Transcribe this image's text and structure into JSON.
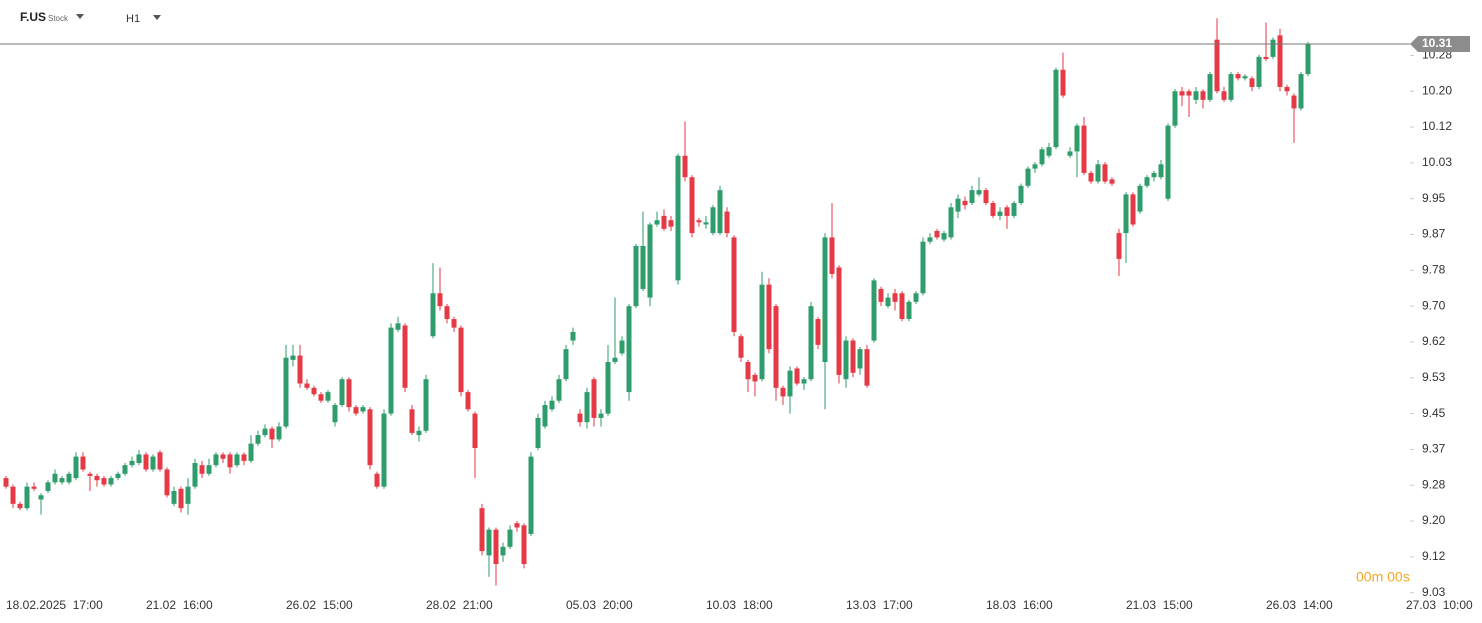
{
  "header": {
    "symbol": "F.US",
    "kind": "Stock",
    "interval": "H1"
  },
  "countdown": "00m 00s",
  "chart_data": {
    "type": "candlestick",
    "up_color": "#2e9d6b",
    "down_color": "#e63946",
    "last_price": 10.31,
    "ylim": [
      9.0,
      10.41
    ],
    "yticks": [
      {
        "value": 9.0333,
        "label": "9.03"
      },
      {
        "value": 9.1167,
        "label": "9.12"
      },
      {
        "value": 9.2,
        "label": "9.20"
      },
      {
        "value": 9.2833,
        "label": "9.28"
      },
      {
        "value": 9.3667,
        "label": "9.37"
      },
      {
        "value": 9.45,
        "label": "9.45"
      },
      {
        "value": 9.5333,
        "label": "9.53"
      },
      {
        "value": 9.6167,
        "label": "9.62"
      },
      {
        "value": 9.7,
        "label": "9.70"
      },
      {
        "value": 9.7833,
        "label": "9.78"
      },
      {
        "value": 9.8667,
        "label": "9.87"
      },
      {
        "value": 9.95,
        "label": "9.95"
      },
      {
        "value": 10.0333,
        "label": "10.03"
      },
      {
        "value": 10.1167,
        "label": "10.12"
      },
      {
        "value": 10.2,
        "label": "10.20"
      },
      {
        "value": 10.2833,
        "label": "10.28"
      }
    ],
    "categories": [
      "18.02.2025  17:00",
      null,
      null,
      null,
      null,
      null,
      null,
      null,
      null,
      null,
      null,
      null,
      null,
      null,
      null,
      null,
      null,
      null,
      null,
      null,
      "21.02  16:00",
      null,
      null,
      null,
      null,
      null,
      null,
      null,
      null,
      null,
      null,
      null,
      null,
      null,
      null,
      null,
      null,
      null,
      null,
      null,
      "26.02  15:00",
      null,
      null,
      null,
      null,
      null,
      null,
      null,
      null,
      null,
      null,
      null,
      null,
      null,
      null,
      null,
      null,
      null,
      null,
      null,
      "28.02  21:00",
      null,
      null,
      null,
      null,
      null,
      null,
      null,
      null,
      null,
      null,
      null,
      null,
      null,
      null,
      null,
      null,
      null,
      null,
      null,
      "05.03  20:00",
      null,
      null,
      null,
      null,
      null,
      null,
      null,
      null,
      null,
      null,
      null,
      null,
      null,
      null,
      null,
      null,
      null,
      null,
      null,
      "10.03  18:00",
      null,
      null,
      null,
      null,
      null,
      null,
      null,
      null,
      null,
      null,
      null,
      null,
      null,
      null,
      null,
      null,
      null,
      null,
      null,
      "13.03  17:00",
      null,
      null,
      null,
      null,
      null,
      null,
      null,
      null,
      null,
      null,
      null,
      null,
      null,
      null,
      null,
      null,
      null,
      null,
      null,
      "18.03  16:00",
      null,
      null,
      null,
      null,
      null,
      null,
      null,
      null,
      null,
      null,
      null,
      null,
      null,
      null,
      null,
      null,
      null,
      null,
      null,
      "21.03  15:00",
      null,
      null,
      null,
      null,
      null,
      null,
      null,
      null,
      null,
      null,
      null,
      null,
      null,
      null,
      null,
      null,
      null,
      null,
      null,
      "26.03  14:00",
      null,
      null,
      null,
      null,
      null,
      null,
      null,
      null,
      null,
      null,
      null,
      null,
      null,
      null,
      null,
      null,
      null,
      null,
      null,
      "27.03  10:00"
    ],
    "open": [
      9.3,
      9.28,
      9.24,
      9.23,
      9.28,
      9.25,
      9.27,
      9.29,
      9.29,
      9.29,
      9.3,
      9.35,
      9.31,
      9.305,
      9.3,
      9.285,
      9.3,
      9.31,
      9.33,
      9.335,
      9.355,
      9.32,
      9.36,
      9.32,
      9.24,
      9.275,
      9.24,
      9.28,
      9.33,
      9.31,
      9.33,
      9.355,
      9.355,
      9.33,
      9.355,
      9.34,
      9.38,
      9.4,
      9.415,
      9.39,
      9.42,
      9.575,
      9.585,
      9.52,
      9.51,
      9.495,
      9.48,
      9.43,
      9.47,
      9.53,
      9.465,
      9.455,
      9.46,
      9.31,
      9.28,
      9.45,
      9.645,
      9.655,
      9.46,
      9.4,
      9.41,
      9.63,
      9.73,
      9.7,
      9.67,
      9.65,
      9.5,
      9.45,
      9.23,
      9.12,
      9.18,
      9.12,
      9.14,
      9.195,
      9.19,
      9.17,
      9.37,
      9.42,
      9.46,
      9.48,
      9.53,
      9.62,
      9.45,
      9.43,
      9.53,
      9.44,
      9.45,
      9.57,
      9.59,
      9.5,
      9.7,
      9.74,
      9.72,
      9.89,
      9.91,
      9.9,
      9.76,
      10.05,
      10.0,
      9.9,
      9.89,
      9.87,
      9.87,
      9.92,
      9.86,
      9.63,
      9.57,
      9.54,
      9.53,
      9.75,
      9.7,
      9.51,
      9.49,
      9.555,
      9.52,
      9.53,
      9.67,
      9.57,
      9.86,
      9.79,
      9.53,
      9.62,
      9.555,
      9.6,
      9.62,
      9.74,
      9.7,
      9.73,
      9.73,
      9.67,
      9.71,
      9.73,
      9.85,
      9.875,
      9.855,
      9.86,
      9.92,
      9.945,
      9.94,
      9.96,
      9.97,
      9.94,
      9.91,
      9.93,
      9.91,
      9.94,
      9.98,
      10.02,
      10.03,
      10.05,
      10.07,
      10.25,
      10.05,
      10.06,
      10.12,
      10.01,
      9.99,
      10.03,
      9.995,
      9.87,
      9.87,
      9.96,
      9.92,
      9.98,
      10.0,
      10.0,
      9.95,
      10.12,
      10.2,
      10.2,
      10.18,
      10.2,
      10.18,
      10.32,
      10.2,
      10.18,
      10.24,
      10.23,
      10.23,
      10.21,
      10.28,
      10.28,
      10.33,
      10.21,
      10.19,
      10.16,
      10.24,
      null,
      null,
      null,
      null,
      null,
      null,
      null,
      null,
      null,
      null,
      null,
      null,
      null,
      null
    ],
    "high": [
      9.305,
      9.285,
      9.245,
      9.29,
      9.29,
      9.265,
      9.295,
      9.32,
      9.305,
      9.315,
      9.36,
      9.36,
      9.315,
      9.31,
      9.305,
      9.305,
      9.315,
      9.335,
      9.35,
      9.365,
      9.36,
      9.355,
      9.365,
      9.325,
      9.28,
      9.28,
      9.3,
      9.345,
      9.34,
      9.345,
      9.36,
      9.36,
      9.36,
      9.36,
      9.36,
      9.4,
      9.41,
      9.425,
      9.42,
      9.43,
      9.61,
      9.61,
      9.61,
      9.53,
      9.515,
      9.5,
      9.505,
      9.475,
      9.535,
      9.535,
      9.47,
      9.47,
      9.465,
      9.315,
      9.46,
      9.66,
      9.675,
      9.66,
      9.47,
      9.42,
      9.54,
      9.8,
      9.79,
      9.705,
      9.675,
      9.655,
      9.505,
      9.455,
      9.24,
      9.185,
      9.185,
      9.15,
      9.19,
      9.2,
      9.195,
      9.36,
      9.45,
      9.48,
      9.49,
      9.54,
      9.61,
      9.65,
      9.46,
      9.51,
      9.535,
      9.46,
      9.61,
      9.72,
      9.63,
      9.705,
      9.845,
      9.92,
      9.895,
      9.92,
      9.925,
      9.91,
      10.055,
      10.13,
      10.005,
      9.905,
      9.91,
      9.935,
      9.98,
      9.93,
      9.865,
      9.635,
      9.575,
      9.545,
      9.78,
      9.765,
      9.705,
      9.515,
      9.56,
      9.56,
      9.535,
      9.71,
      9.675,
      9.87,
      9.94,
      9.795,
      9.63,
      9.625,
      9.605,
      9.61,
      9.765,
      9.745,
      9.73,
      9.74,
      9.735,
      9.715,
      9.735,
      9.86,
      9.87,
      9.88,
      9.875,
      9.94,
      9.96,
      9.955,
      9.98,
      10.0,
      9.975,
      9.945,
      9.93,
      9.935,
      9.945,
      9.985,
      10.025,
      10.035,
      10.07,
      10.08,
      10.255,
      10.29,
      10.07,
      10.125,
      10.14,
      10.015,
      10.04,
      10.035,
      10.0,
      9.88,
      9.965,
      9.965,
      9.985,
      10.005,
      10.015,
      10.04,
      10.125,
      10.205,
      10.21,
      10.205,
      10.21,
      10.205,
      10.245,
      10.37,
      10.21,
      10.245,
      10.245,
      10.24,
      10.235,
      10.285,
      10.36,
      10.325,
      10.345,
      10.215,
      10.195,
      10.245,
      10.315,
      null,
      null,
      null,
      null,
      null,
      null,
      null,
      null,
      null,
      null,
      null,
      null,
      null,
      null
    ],
    "low": [
      9.275,
      9.23,
      9.225,
      9.225,
      9.27,
      9.215,
      9.265,
      9.285,
      9.285,
      9.285,
      9.295,
      9.315,
      9.27,
      9.28,
      9.28,
      9.28,
      9.295,
      9.305,
      9.325,
      9.33,
      9.315,
      9.315,
      9.315,
      9.255,
      9.235,
      9.22,
      9.215,
      9.275,
      9.3,
      9.305,
      9.325,
      9.335,
      9.31,
      9.325,
      9.33,
      9.335,
      9.375,
      9.395,
      9.37,
      9.385,
      9.415,
      9.56,
      9.51,
      9.505,
      9.49,
      9.475,
      9.475,
      9.42,
      9.465,
      9.455,
      9.445,
      9.45,
      9.32,
      9.275,
      9.275,
      9.445,
      9.64,
      9.5,
      9.4,
      9.385,
      9.405,
      9.625,
      9.69,
      9.66,
      9.64,
      9.49,
      9.455,
      9.3,
      9.12,
      9.07,
      9.05,
      9.105,
      9.135,
      9.175,
      9.09,
      9.165,
      9.365,
      9.415,
      9.455,
      9.475,
      9.525,
      9.61,
      9.42,
      9.415,
      9.42,
      9.42,
      9.445,
      9.565,
      9.585,
      9.48,
      9.695,
      9.735,
      9.7,
      9.885,
      9.875,
      9.875,
      9.75,
      9.99,
      9.86,
      9.885,
      9.88,
      9.865,
      9.865,
      9.86,
      9.63,
      9.57,
      9.5,
      9.49,
      9.525,
      9.59,
      9.48,
      9.47,
      9.45,
      9.515,
      9.505,
      9.525,
      9.6,
      9.46,
      9.765,
      9.52,
      9.51,
      9.535,
      9.54,
      9.51,
      9.615,
      9.7,
      9.695,
      9.69,
      9.665,
      9.665,
      9.705,
      9.725,
      9.845,
      9.855,
      9.85,
      9.855,
      9.905,
      9.925,
      9.935,
      9.955,
      9.935,
      9.905,
      9.9,
      9.88,
      9.905,
      9.935,
      9.975,
      10.01,
      10.025,
      10.045,
      10.065,
      10.185,
      10.045,
      10.0,
      10.005,
      9.985,
      9.985,
      9.985,
      9.98,
      9.77,
      9.8,
      9.885,
      9.915,
      9.975,
      9.99,
      9.995,
      9.945,
      10.115,
      10.165,
      10.14,
      10.17,
      10.16,
      10.175,
      10.195,
      10.175,
      10.175,
      10.225,
      10.225,
      10.2,
      10.205,
      10.27,
      10.275,
      10.2,
      10.19,
      10.08,
      10.155,
      10.235,
      null,
      null,
      null,
      null,
      null,
      null,
      null,
      null,
      null,
      null,
      null,
      null,
      null,
      null
    ],
    "close": [
      9.28,
      9.24,
      9.23,
      9.28,
      9.275,
      9.26,
      9.29,
      9.31,
      9.3,
      9.31,
      9.35,
      9.32,
      9.305,
      9.295,
      9.285,
      9.3,
      9.31,
      9.33,
      9.34,
      9.355,
      9.32,
      9.35,
      9.32,
      9.26,
      9.27,
      9.23,
      9.28,
      9.335,
      9.31,
      9.33,
      9.355,
      9.345,
      9.325,
      9.355,
      9.34,
      9.38,
      9.4,
      9.415,
      9.39,
      9.42,
      9.58,
      9.585,
      9.52,
      9.51,
      9.495,
      9.48,
      9.5,
      9.47,
      9.53,
      9.465,
      9.45,
      9.465,
      9.33,
      9.28,
      9.45,
      9.65,
      9.66,
      9.51,
      9.405,
      9.41,
      9.53,
      9.73,
      9.7,
      9.67,
      9.65,
      9.5,
      9.46,
      9.37,
      9.13,
      9.18,
      9.1,
      9.14,
      9.18,
      9.185,
      9.1,
      9.35,
      9.44,
      9.47,
      9.48,
      9.53,
      9.6,
      9.64,
      9.43,
      9.5,
      9.44,
      9.45,
      9.57,
      9.58,
      9.62,
      9.7,
      9.84,
      9.84,
      9.89,
      9.9,
      9.88,
      9.885,
      10.05,
      10.0,
      9.87,
      9.895,
      9.895,
      9.93,
      9.97,
      9.87,
      9.64,
      9.58,
      9.53,
      9.525,
      9.75,
      9.6,
      9.51,
      9.49,
      9.55,
      9.52,
      9.53,
      9.7,
      9.61,
      9.86,
      9.775,
      9.54,
      9.62,
      9.545,
      9.6,
      9.515,
      9.76,
      9.71,
      9.72,
      9.71,
      9.67,
      9.71,
      9.73,
      9.85,
      9.86,
      9.86,
      9.87,
      9.93,
      9.95,
      9.935,
      9.97,
      9.97,
      9.94,
      9.91,
      9.92,
      9.91,
      9.94,
      9.98,
      10.02,
      10.03,
      10.065,
      10.07,
      10.25,
      10.19,
      10.06,
      10.12,
      10.01,
      9.99,
      10.03,
      9.99,
      9.985,
      9.81,
      9.96,
      9.89,
      9.98,
      10.0,
      10.01,
      10.03,
      10.12,
      10.2,
      10.19,
      10.19,
      10.2,
      10.18,
      10.24,
      10.2,
      10.18,
      10.24,
      10.23,
      10.235,
      10.21,
      10.28,
      10.275,
      10.32,
      10.21,
      10.2,
      10.16,
      10.24,
      10.31,
      null,
      null,
      null,
      null,
      null,
      null,
      null,
      null,
      null,
      null,
      null,
      null,
      null,
      null
    ]
  }
}
